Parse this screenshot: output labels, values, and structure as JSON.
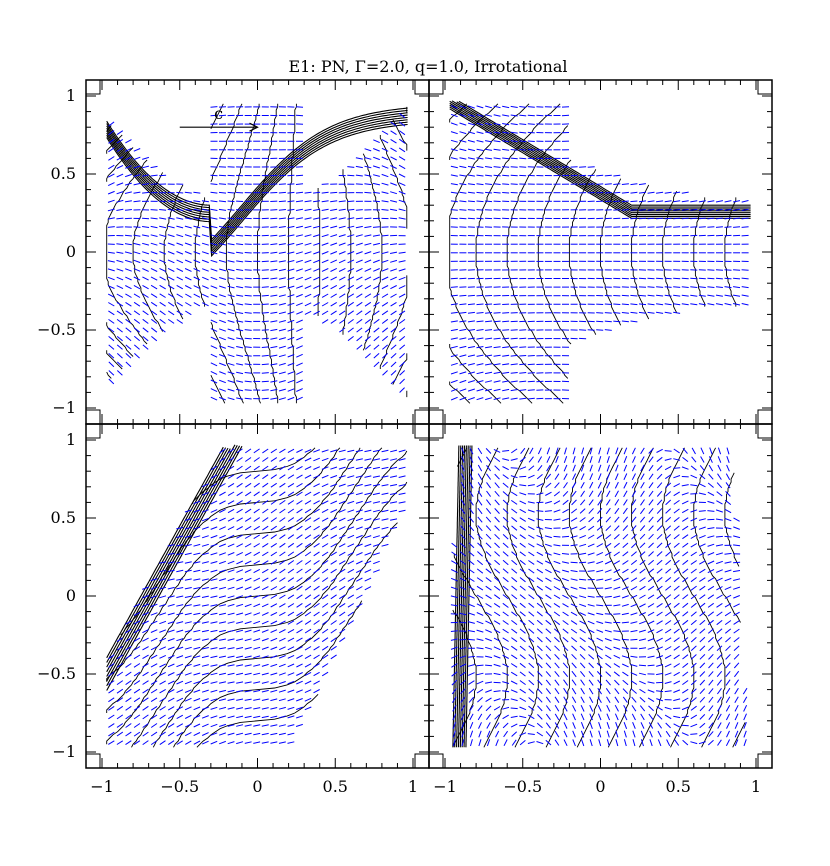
{
  "title": "E1: PN, Γ=2.0, q=1.0, Irrotational",
  "colors": {
    "contour": "#000000",
    "vector": "#0000ff",
    "frame": "#000000"
  },
  "chart_data": {
    "type": "vector-field-contour",
    "panels": 4,
    "layout": "2x2",
    "xlim": [
      -1,
      1
    ],
    "ylim": [
      -1,
      1
    ],
    "x_tick_labels": [
      "−1",
      "−0.5",
      "0",
      "0.5",
      "1"
    ],
    "y_tick_labels": [
      "1",
      "0.5",
      "0",
      "−0.5",
      "−1"
    ],
    "x_tick_values": [
      -1,
      -0.5,
      0,
      0.5,
      1
    ],
    "y_tick_values": [
      1,
      0.5,
      0,
      -0.5,
      -1
    ],
    "annotation": {
      "text": "c",
      "panel": 0,
      "arrow_from": [
        -0.5,
        0.8
      ],
      "arrow_to": [
        0.0,
        0.8
      ]
    }
  }
}
